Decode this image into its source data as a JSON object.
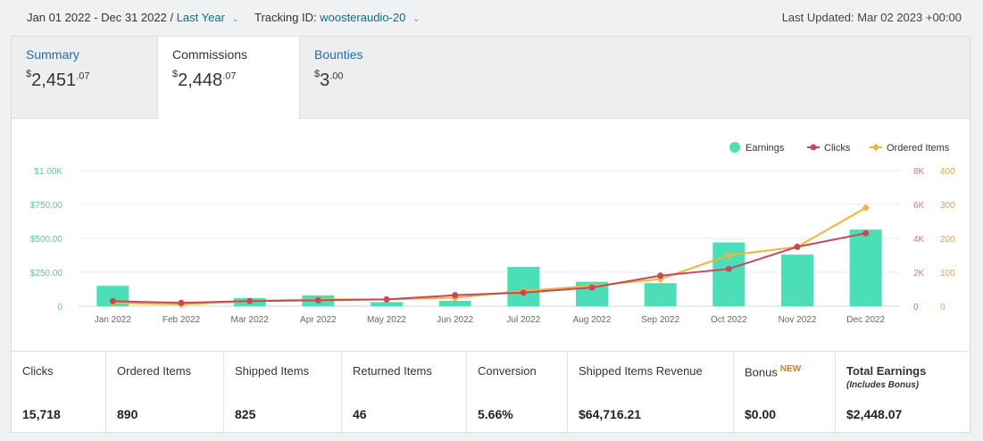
{
  "topbar": {
    "date_range": "Jan 01 2022 - Dec 31 2022 /",
    "date_preset": "Last Year",
    "tracking_label": "Tracking ID:",
    "tracking_id": "woosteraudio-20",
    "last_updated": "Last Updated: Mar 02 2023 +00:00",
    "caret": "⌄"
  },
  "tabs": [
    {
      "label": "Summary",
      "currency": "$",
      "dollars": "2,451",
      "cents": ".07",
      "active": false
    },
    {
      "label": "Commissions",
      "currency": "$",
      "dollars": "2,448",
      "cents": ".07",
      "active": true
    },
    {
      "label": "Bounties",
      "currency": "$",
      "dollars": "3",
      "cents": ".00",
      "active": false
    }
  ],
  "chart_data": {
    "type": "bar",
    "categories": [
      "Jan 2022",
      "Feb 2022",
      "Mar 2022",
      "Apr 2022",
      "May 2022",
      "Jun 2022",
      "Jul 2022",
      "Aug 2022",
      "Sep 2022",
      "Oct 2022",
      "Nov 2022",
      "Dec 2022"
    ],
    "series": [
      {
        "name": "Earnings",
        "type": "bar",
        "axis": "left",
        "color": "#4cdeb6",
        "values": [
          150,
          0,
          60,
          80,
          30,
          40,
          290,
          180,
          170,
          470,
          380,
          565
        ]
      },
      {
        "name": "Clicks",
        "type": "line",
        "axis": "right_outer",
        "color": "#c44a5a",
        "values": [
          300,
          200,
          300,
          350,
          400,
          650,
          800,
          1100,
          1800,
          2200,
          3500,
          4300
        ]
      },
      {
        "name": "Ordered Items",
        "type": "line",
        "axis": "right_inner",
        "color": "#f0b43c",
        "values": [
          10,
          5,
          15,
          20,
          20,
          25,
          45,
          60,
          80,
          150,
          175,
          290
        ]
      }
    ],
    "left_axis": {
      "ticks": [
        "0",
        "$250.00",
        "$500.00",
        "$750.00",
        "$1.00K"
      ],
      "ylim": [
        0,
        1000
      ]
    },
    "right_outer_axis": {
      "ticks": [
        "0",
        "2K",
        "4K",
        "6K",
        "8K"
      ],
      "ylim": [
        0,
        8000
      ]
    },
    "right_inner_axis": {
      "ticks": [
        "0",
        "100",
        "200",
        "300",
        "400"
      ],
      "ylim": [
        0,
        400
      ]
    },
    "legend": [
      "Earnings",
      "Clicks",
      "Ordered Items"
    ],
    "legend_position": "top-right",
    "grid": true
  },
  "stats": [
    {
      "label": "Clicks",
      "value": "15,718"
    },
    {
      "label": "Ordered Items",
      "value": "890"
    },
    {
      "label": "Shipped Items",
      "value": "825"
    },
    {
      "label": "Returned Items",
      "value": "46"
    },
    {
      "label": "Conversion",
      "value": "5.66%"
    },
    {
      "label": "Shipped Items Revenue",
      "value": "$64,716.21"
    },
    {
      "label": "Bonus",
      "badge": "NEW",
      "value": "$0.00"
    },
    {
      "label": "Total Earnings",
      "sub": "(Includes Bonus)",
      "value": "$2,448.07"
    }
  ]
}
